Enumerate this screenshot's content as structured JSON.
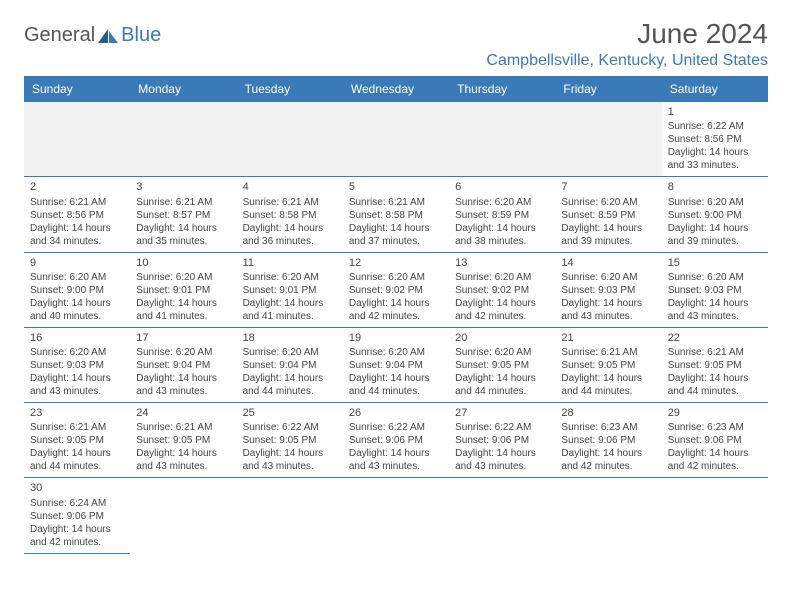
{
  "logo": {
    "part1": "General",
    "part2": "Blue"
  },
  "title": "June 2024",
  "location": "Campbellsville, Kentucky, United States",
  "colors": {
    "header_bg": "#3a7ab8",
    "header_text": "#ffffff",
    "accent": "#3a7ab8",
    "text": "#444444",
    "blank_bg": "#f2f2f2"
  },
  "weekdays": [
    "Sunday",
    "Monday",
    "Tuesday",
    "Wednesday",
    "Thursday",
    "Friday",
    "Saturday"
  ],
  "weeks": [
    [
      null,
      null,
      null,
      null,
      null,
      null,
      {
        "n": "1",
        "sr": "Sunrise: 6:22 AM",
        "ss": "Sunset: 8:56 PM",
        "d1": "Daylight: 14 hours",
        "d2": "and 33 minutes."
      }
    ],
    [
      {
        "n": "2",
        "sr": "Sunrise: 6:21 AM",
        "ss": "Sunset: 8:56 PM",
        "d1": "Daylight: 14 hours",
        "d2": "and 34 minutes."
      },
      {
        "n": "3",
        "sr": "Sunrise: 6:21 AM",
        "ss": "Sunset: 8:57 PM",
        "d1": "Daylight: 14 hours",
        "d2": "and 35 minutes."
      },
      {
        "n": "4",
        "sr": "Sunrise: 6:21 AM",
        "ss": "Sunset: 8:58 PM",
        "d1": "Daylight: 14 hours",
        "d2": "and 36 minutes."
      },
      {
        "n": "5",
        "sr": "Sunrise: 6:21 AM",
        "ss": "Sunset: 8:58 PM",
        "d1": "Daylight: 14 hours",
        "d2": "and 37 minutes."
      },
      {
        "n": "6",
        "sr": "Sunrise: 6:20 AM",
        "ss": "Sunset: 8:59 PM",
        "d1": "Daylight: 14 hours",
        "d2": "and 38 minutes."
      },
      {
        "n": "7",
        "sr": "Sunrise: 6:20 AM",
        "ss": "Sunset: 8:59 PM",
        "d1": "Daylight: 14 hours",
        "d2": "and 39 minutes."
      },
      {
        "n": "8",
        "sr": "Sunrise: 6:20 AM",
        "ss": "Sunset: 9:00 PM",
        "d1": "Daylight: 14 hours",
        "d2": "and 39 minutes."
      }
    ],
    [
      {
        "n": "9",
        "sr": "Sunrise: 6:20 AM",
        "ss": "Sunset: 9:00 PM",
        "d1": "Daylight: 14 hours",
        "d2": "and 40 minutes."
      },
      {
        "n": "10",
        "sr": "Sunrise: 6:20 AM",
        "ss": "Sunset: 9:01 PM",
        "d1": "Daylight: 14 hours",
        "d2": "and 41 minutes."
      },
      {
        "n": "11",
        "sr": "Sunrise: 6:20 AM",
        "ss": "Sunset: 9:01 PM",
        "d1": "Daylight: 14 hours",
        "d2": "and 41 minutes."
      },
      {
        "n": "12",
        "sr": "Sunrise: 6:20 AM",
        "ss": "Sunset: 9:02 PM",
        "d1": "Daylight: 14 hours",
        "d2": "and 42 minutes."
      },
      {
        "n": "13",
        "sr": "Sunrise: 6:20 AM",
        "ss": "Sunset: 9:02 PM",
        "d1": "Daylight: 14 hours",
        "d2": "and 42 minutes."
      },
      {
        "n": "14",
        "sr": "Sunrise: 6:20 AM",
        "ss": "Sunset: 9:03 PM",
        "d1": "Daylight: 14 hours",
        "d2": "and 43 minutes."
      },
      {
        "n": "15",
        "sr": "Sunrise: 6:20 AM",
        "ss": "Sunset: 9:03 PM",
        "d1": "Daylight: 14 hours",
        "d2": "and 43 minutes."
      }
    ],
    [
      {
        "n": "16",
        "sr": "Sunrise: 6:20 AM",
        "ss": "Sunset: 9:03 PM",
        "d1": "Daylight: 14 hours",
        "d2": "and 43 minutes."
      },
      {
        "n": "17",
        "sr": "Sunrise: 6:20 AM",
        "ss": "Sunset: 9:04 PM",
        "d1": "Daylight: 14 hours",
        "d2": "and 43 minutes."
      },
      {
        "n": "18",
        "sr": "Sunrise: 6:20 AM",
        "ss": "Sunset: 9:04 PM",
        "d1": "Daylight: 14 hours",
        "d2": "and 44 minutes."
      },
      {
        "n": "19",
        "sr": "Sunrise: 6:20 AM",
        "ss": "Sunset: 9:04 PM",
        "d1": "Daylight: 14 hours",
        "d2": "and 44 minutes."
      },
      {
        "n": "20",
        "sr": "Sunrise: 6:20 AM",
        "ss": "Sunset: 9:05 PM",
        "d1": "Daylight: 14 hours",
        "d2": "and 44 minutes."
      },
      {
        "n": "21",
        "sr": "Sunrise: 6:21 AM",
        "ss": "Sunset: 9:05 PM",
        "d1": "Daylight: 14 hours",
        "d2": "and 44 minutes."
      },
      {
        "n": "22",
        "sr": "Sunrise: 6:21 AM",
        "ss": "Sunset: 9:05 PM",
        "d1": "Daylight: 14 hours",
        "d2": "and 44 minutes."
      }
    ],
    [
      {
        "n": "23",
        "sr": "Sunrise: 6:21 AM",
        "ss": "Sunset: 9:05 PM",
        "d1": "Daylight: 14 hours",
        "d2": "and 44 minutes."
      },
      {
        "n": "24",
        "sr": "Sunrise: 6:21 AM",
        "ss": "Sunset: 9:05 PM",
        "d1": "Daylight: 14 hours",
        "d2": "and 43 minutes."
      },
      {
        "n": "25",
        "sr": "Sunrise: 6:22 AM",
        "ss": "Sunset: 9:05 PM",
        "d1": "Daylight: 14 hours",
        "d2": "and 43 minutes."
      },
      {
        "n": "26",
        "sr": "Sunrise: 6:22 AM",
        "ss": "Sunset: 9:06 PM",
        "d1": "Daylight: 14 hours",
        "d2": "and 43 minutes."
      },
      {
        "n": "27",
        "sr": "Sunrise: 6:22 AM",
        "ss": "Sunset: 9:06 PM",
        "d1": "Daylight: 14 hours",
        "d2": "and 43 minutes."
      },
      {
        "n": "28",
        "sr": "Sunrise: 6:23 AM",
        "ss": "Sunset: 9:06 PM",
        "d1": "Daylight: 14 hours",
        "d2": "and 42 minutes."
      },
      {
        "n": "29",
        "sr": "Sunrise: 6:23 AM",
        "ss": "Sunset: 9:06 PM",
        "d1": "Daylight: 14 hours",
        "d2": "and 42 minutes."
      }
    ],
    [
      {
        "n": "30",
        "sr": "Sunrise: 6:24 AM",
        "ss": "Sunset: 9:06 PM",
        "d1": "Daylight: 14 hours",
        "d2": "and 42 minutes."
      },
      null,
      null,
      null,
      null,
      null,
      null
    ]
  ]
}
